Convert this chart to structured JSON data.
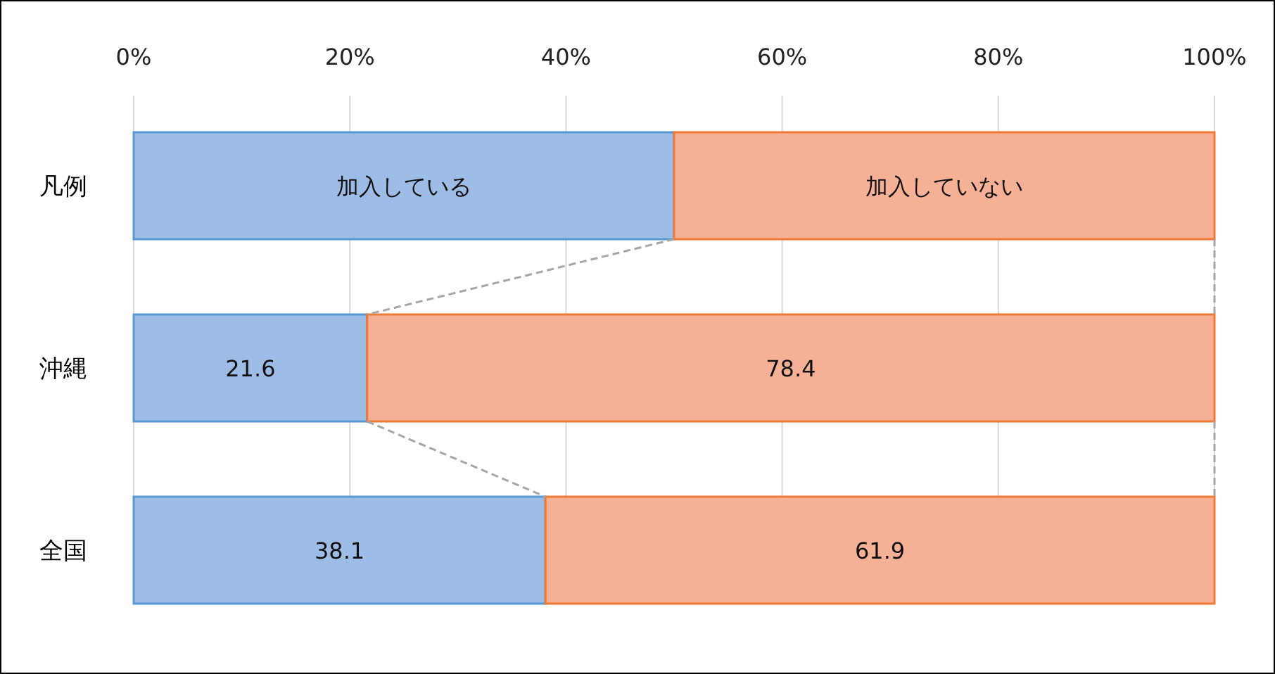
{
  "chart_data": {
    "type": "bar",
    "orientation": "horizontal",
    "stacked": true,
    "categories": [
      "凡例",
      "沖縄",
      "全国"
    ],
    "series": [
      {
        "color": "#9dbde6",
        "values": [
          50,
          21.6,
          38.1
        ],
        "value_labels": [
          "加入している",
          "21.6",
          "38.1"
        ]
      },
      {
        "color": "#f5b095",
        "values": [
          50,
          78.4,
          61.9
        ],
        "value_labels": [
          "加入していない",
          "78.4",
          "61.9"
        ]
      }
    ],
    "xlim": [
      0,
      100
    ],
    "xticks": [
      {
        "value": 0,
        "label": "0%"
      },
      {
        "value": 20,
        "label": "20%"
      },
      {
        "value": 40,
        "label": "40%"
      },
      {
        "value": 60,
        "label": "60%"
      },
      {
        "value": 80,
        "label": "80%"
      },
      {
        "value": 100,
        "label": "100%"
      }
    ],
    "grid": "x"
  }
}
